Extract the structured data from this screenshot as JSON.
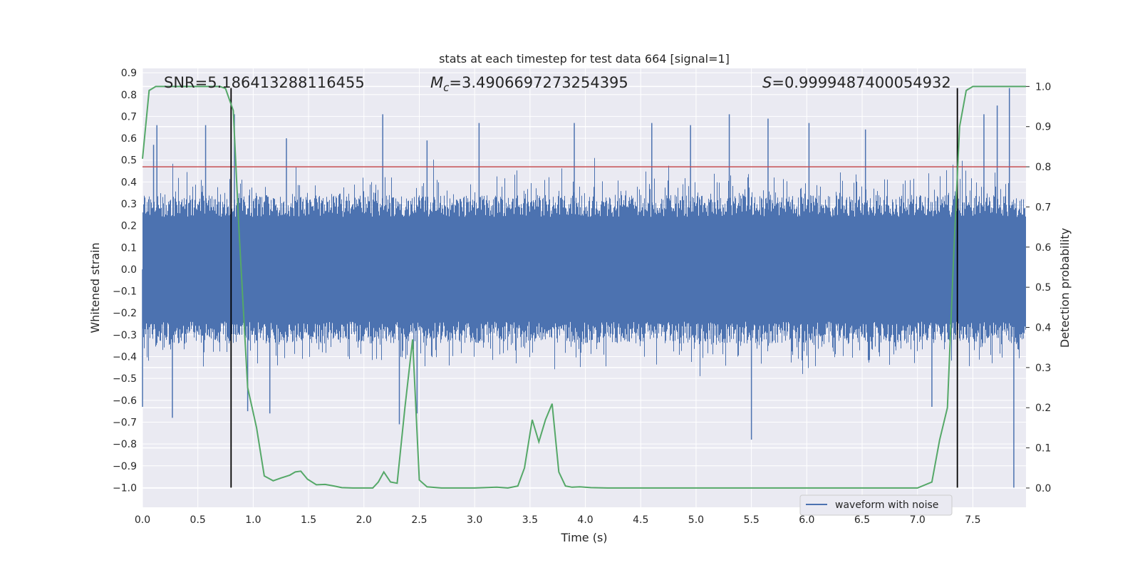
{
  "chart_data": {
    "type": "line",
    "title": "stats at each timestep for test data 664 [signal=1]",
    "xlabel": "Time (s)",
    "ylabel": "Whitened strain",
    "y2label": "Detection probability",
    "xlim": [
      0.0,
      7.98
    ],
    "ylim": [
      -1.09,
      0.92
    ],
    "y2lim": [
      -0.048,
      1.045
    ],
    "xticks": [
      "0.0",
      "0.5",
      "1.0",
      "1.5",
      "2.0",
      "2.5",
      "3.0",
      "3.5",
      "4.0",
      "4.5",
      "5.0",
      "5.5",
      "6.0",
      "6.5",
      "7.0",
      "7.5"
    ],
    "yticks": [
      "0.9",
      "0.8",
      "0.7",
      "0.6",
      "0.5",
      "0.4",
      "0.3",
      "0.2",
      "0.1",
      "0.0",
      "-0.1",
      "-0.2",
      "-0.3",
      "-0.4",
      "-0.5",
      "-0.6",
      "-0.7",
      "-0.8",
      "-0.9",
      "-1.0"
    ],
    "y2ticks": [
      "1.0",
      "0.9",
      "0.8",
      "0.7",
      "0.6",
      "0.5",
      "0.4",
      "0.3",
      "0.2",
      "0.1",
      "0.0"
    ],
    "annotations": {
      "snr": "SNR=5.186413288116455",
      "mc_symbol": "M",
      "mc_sub": "c",
      "mc_value": "=3.4906697273254395",
      "s_symbol": "S",
      "s_value": "=0.9999487400054932"
    },
    "threshold": {
      "value": 0.8,
      "axis": "right",
      "color": "#c44e52"
    },
    "vertical_lines": {
      "x": [
        0.8,
        7.36
      ],
      "ymin": -1.0,
      "ymax": 0.83,
      "color": "#000000"
    },
    "series": [
      {
        "name": "waveform with noise",
        "axis": "left",
        "color": "#4c72b0",
        "sample_rate": 2048,
        "peak_times": [
          0.0,
          0.1,
          0.13,
          0.27,
          0.57,
          0.83,
          0.95,
          1.15,
          1.3,
          2.17,
          2.32,
          2.48,
          2.57,
          3.04,
          3.9,
          4.6,
          4.95,
          5.3,
          5.5,
          5.65,
          6.02,
          6.53,
          7.13,
          7.6,
          7.72,
          7.83,
          7.87
        ],
        "peak_values": [
          -0.63,
          0.57,
          0.66,
          -0.68,
          0.66,
          0.71,
          -0.65,
          -0.66,
          0.6,
          0.71,
          -0.71,
          -0.66,
          0.59,
          0.67,
          0.67,
          0.67,
          0.66,
          0.71,
          -0.78,
          0.69,
          0.67,
          0.64,
          -0.63,
          0.71,
          0.75,
          0.83,
          -1.0
        ]
      },
      {
        "name": "detection probability",
        "axis": "right",
        "color": "#55a868",
        "x": [
          0.0,
          0.06,
          0.12,
          0.25,
          0.5,
          0.7,
          0.75,
          0.82,
          0.87,
          0.95,
          1.03,
          1.1,
          1.18,
          1.25,
          1.33,
          1.38,
          1.43,
          1.49,
          1.57,
          1.65,
          1.73,
          1.8,
          1.9,
          2.0,
          2.08,
          2.13,
          2.18,
          2.24,
          2.3,
          2.37,
          2.44,
          2.5,
          2.57,
          2.7,
          2.85,
          3.0,
          3.2,
          3.3,
          3.39,
          3.45,
          3.52,
          3.58,
          3.64,
          3.7,
          3.76,
          3.82,
          3.88,
          3.95,
          4.05,
          4.2,
          4.5,
          5.0,
          5.5,
          6.0,
          6.5,
          7.0,
          7.13,
          7.2,
          7.27,
          7.33,
          7.38,
          7.44,
          7.5,
          7.55,
          7.6,
          7.7,
          7.98
        ],
        "values": [
          0.82,
          0.99,
          1.0,
          1.0,
          1.0,
          1.0,
          0.995,
          0.94,
          0.65,
          0.25,
          0.15,
          0.03,
          0.018,
          0.025,
          0.032,
          0.04,
          0.042,
          0.022,
          0.008,
          0.009,
          0.005,
          0.001,
          0.0,
          0.0,
          0.0,
          0.015,
          0.04,
          0.015,
          0.012,
          0.2,
          0.37,
          0.02,
          0.003,
          0.0,
          0.0,
          0.0,
          0.002,
          0.0,
          0.005,
          0.05,
          0.17,
          0.115,
          0.17,
          0.21,
          0.04,
          0.005,
          0.002,
          0.003,
          0.001,
          0.0,
          0.0,
          0.0,
          0.0,
          0.0,
          0.0,
          0.0,
          0.015,
          0.12,
          0.2,
          0.6,
          0.9,
          0.99,
          1.0,
          1.0,
          1.0,
          1.0,
          1.0
        ]
      }
    ],
    "legend": {
      "entries": [
        "waveform with noise"
      ],
      "position": "lower-right"
    }
  }
}
